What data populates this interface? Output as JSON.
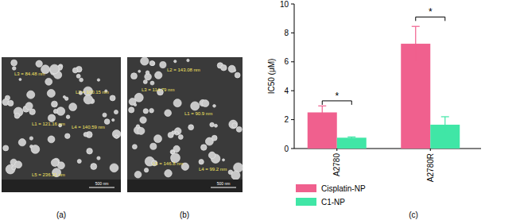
{
  "chart_data": {
    "type": "bar",
    "y_label": "IC50 (μM)",
    "categories": [
      "A2780",
      "A2780R"
    ],
    "series": [
      {
        "name": "Cisplatin-NP",
        "color": "#f0608e",
        "values": [
          2.5,
          7.25
        ],
        "errors": [
          0.45,
          1.2
        ]
      },
      {
        "name": "C1-NP",
        "color": "#40e6a6",
        "values": [
          0.75,
          1.65
        ],
        "errors": [
          0.05,
          0.55
        ]
      }
    ],
    "ylim": [
      0,
      10
    ],
    "yticks": [
      0,
      2,
      4,
      6,
      8,
      10
    ],
    "legend": "bottom",
    "annotations": [
      {
        "text": "*",
        "category": 0,
        "y": 3.3
      },
      {
        "text": "*",
        "category": 1,
        "y": 9.1
      }
    ]
  },
  "panels": [
    "(a)",
    "(b)",
    "(c)"
  ],
  "images": [
    {
      "measurements": [
        "L3 = 84.48 nm",
        "L2 = 100.15 nm",
        "L1 = 121.16 nm",
        "L4 = 140.59 nm",
        "L5 = 236.21 nm"
      ],
      "scale_bar": "500 nm"
    },
    {
      "measurements": [
        "L2 = 143.08 nm",
        "L3 = 114.79 nm",
        "L1 = 90.9 nm",
        "L5 = 146.8 nm",
        "L4 = 99.2 nm"
      ],
      "scale_bar": "500 nm"
    }
  ]
}
